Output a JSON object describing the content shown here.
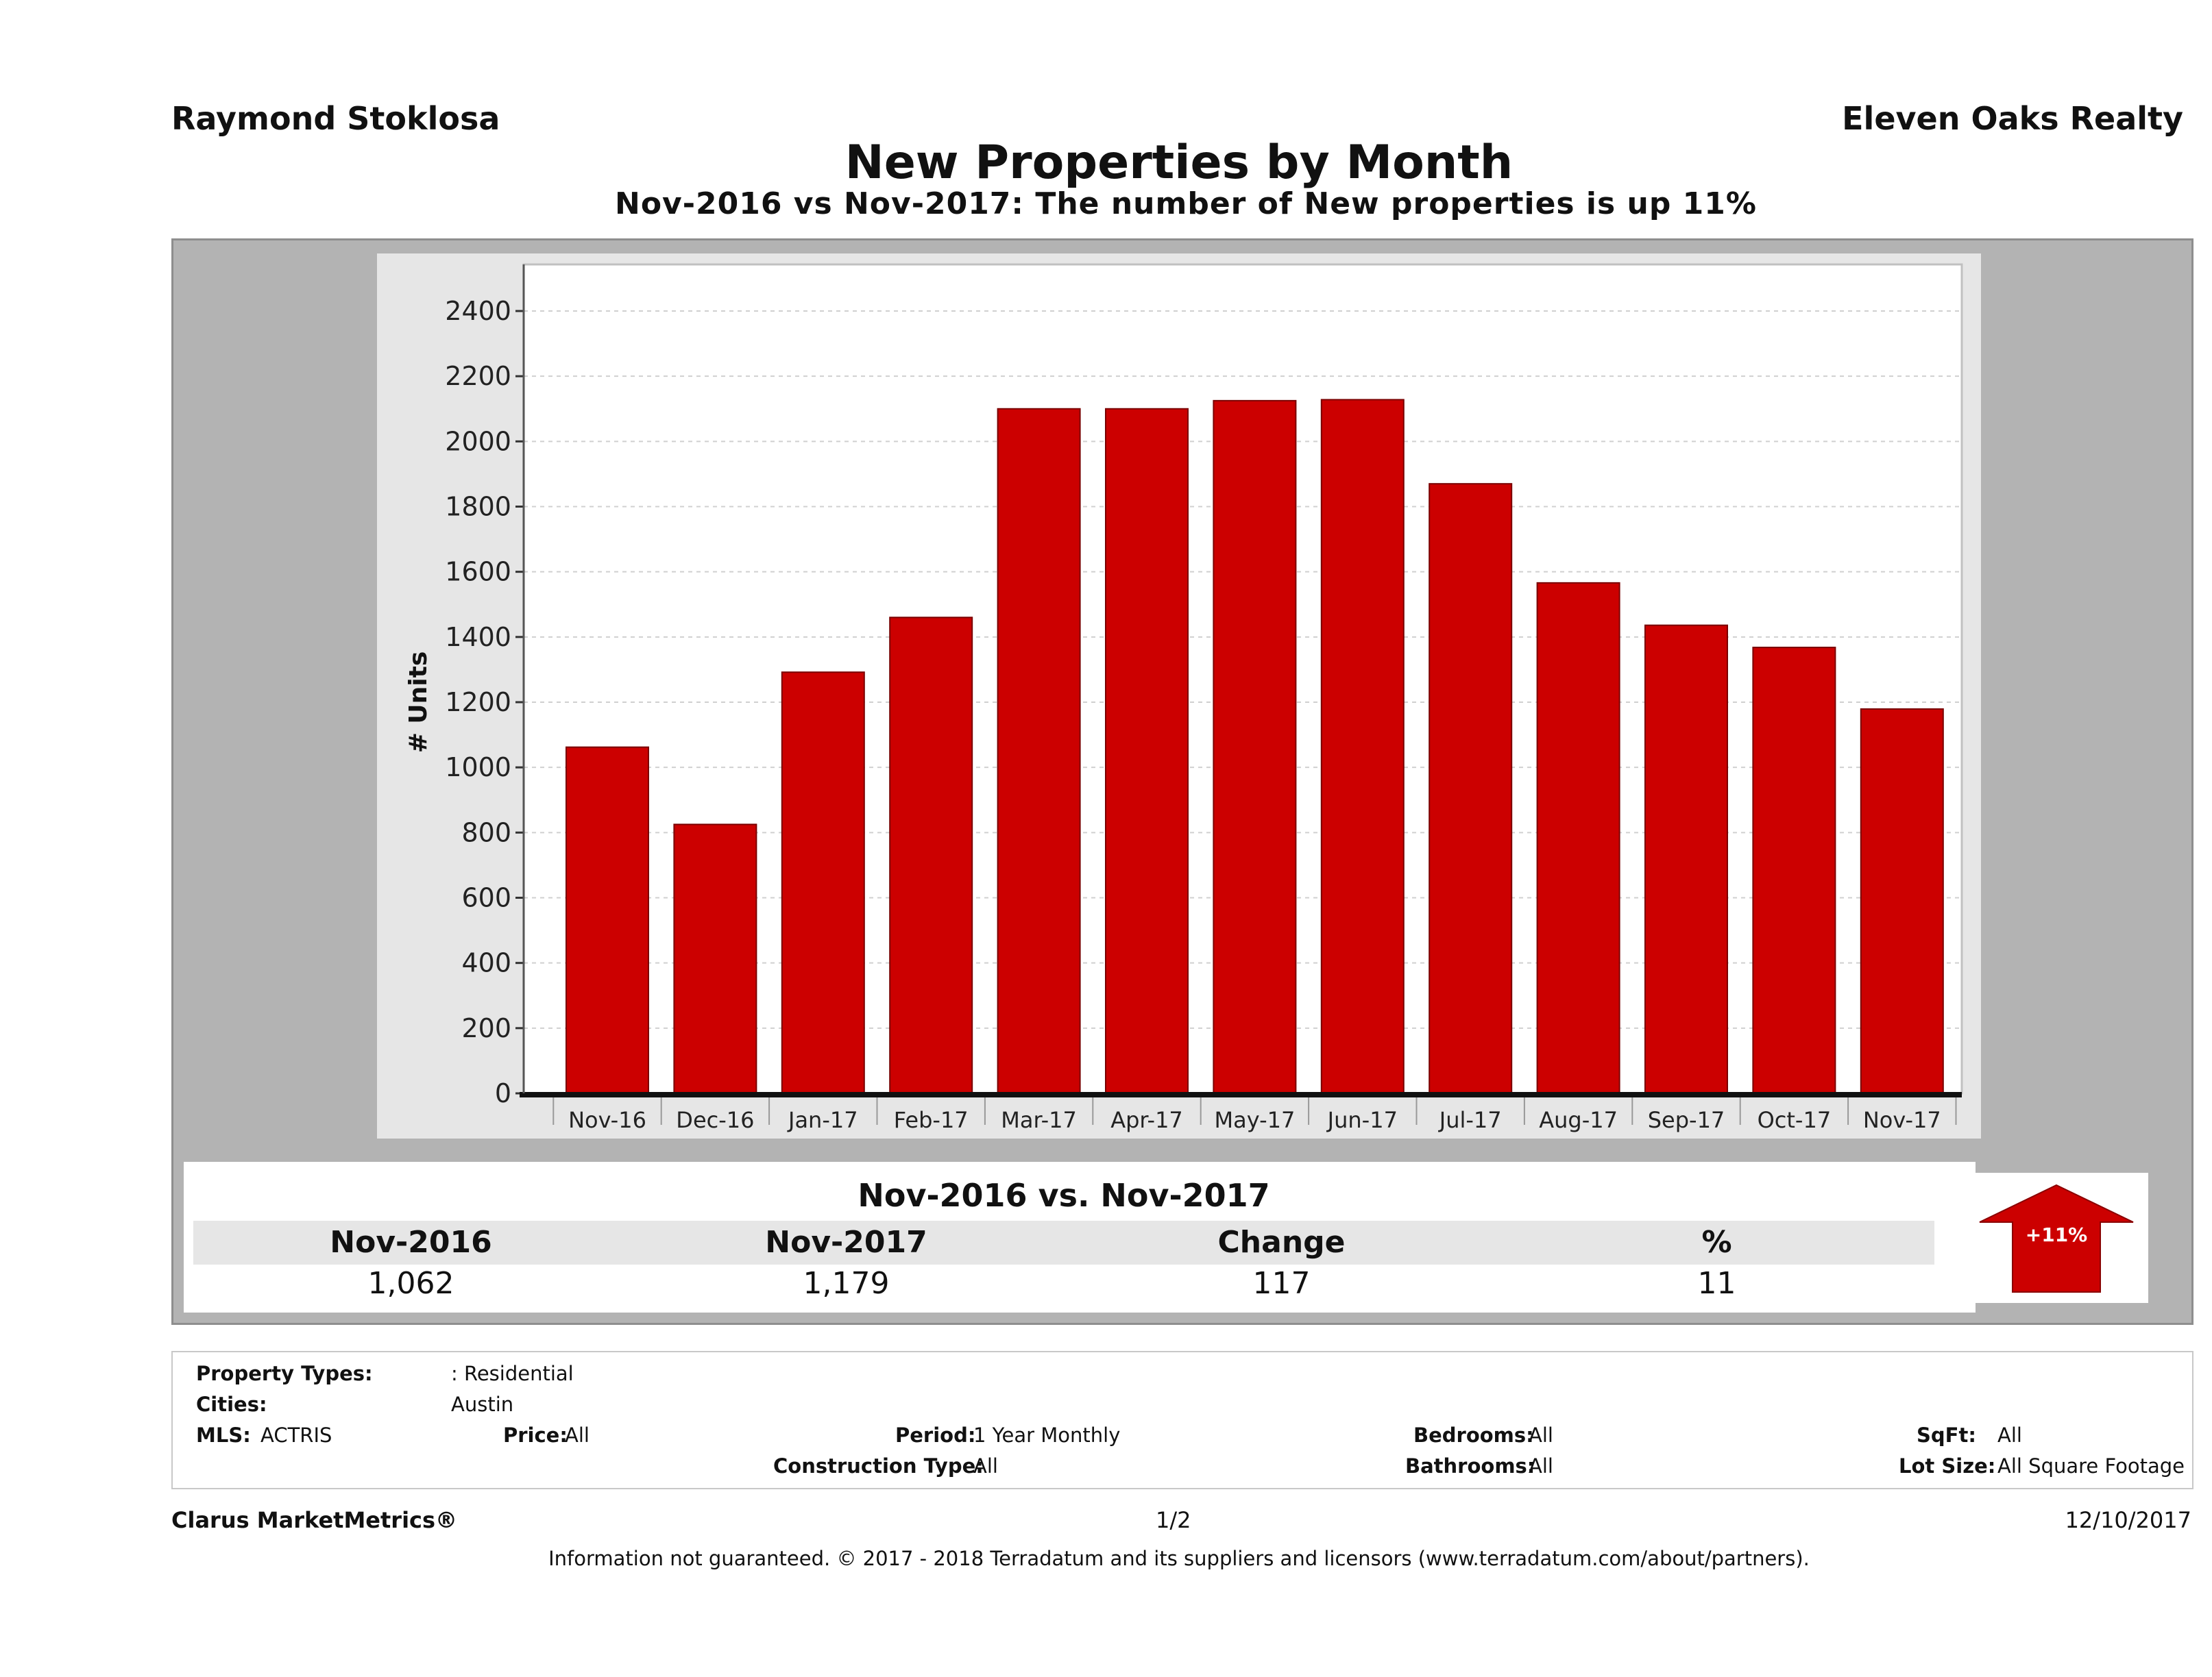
{
  "header": {
    "agent": "Raymond Stoklosa",
    "brokerage": "Eleven Oaks Realty",
    "title": "New Properties by Month",
    "subtitle": "Nov-2016 vs Nov-2017: The number of New  properties is up 11%"
  },
  "colors": {
    "bar": "#cc0000",
    "panel": "#b3b3b3",
    "plot_bg": "#ffffff",
    "chart_bg": "#e6e6e6",
    "arrow": "#cc0000"
  },
  "chart_data": {
    "type": "bar",
    "title": "",
    "xlabel": "",
    "ylabel": "# Units",
    "categories": [
      "Nov-16",
      "Dec-16",
      "Jan-17",
      "Feb-17",
      "Mar-17",
      "Apr-17",
      "May-17",
      "Jun-17",
      "Jul-17",
      "Aug-17",
      "Sep-17",
      "Oct-17",
      "Nov-17"
    ],
    "values": [
      1062,
      825,
      1292,
      1460,
      2100,
      2100,
      2125,
      2128,
      1870,
      1566,
      1436,
      1368,
      1179
    ],
    "ylim": [
      0,
      2400
    ],
    "yticks": [
      0,
      200,
      400,
      600,
      800,
      1000,
      1200,
      1400,
      1600,
      1800,
      2000,
      2200,
      2400
    ],
    "grid": true,
    "legend": "none"
  },
  "summary": {
    "title": "Nov-2016 vs. Nov-2017",
    "headers": [
      "Nov-2016",
      "Nov-2017",
      "Change",
      "%"
    ],
    "values": [
      "1,062",
      "1,179",
      "117",
      "11"
    ],
    "badge": "+11%",
    "badge_icon": "up-arrow-icon"
  },
  "criteria": {
    "property_types_label": "Property Types:",
    "property_types": ": Residential",
    "cities_label": "Cities:",
    "cities": "Austin",
    "mls_label": "MLS:",
    "mls": "ACTRIS",
    "price_label": "Price:",
    "price": "All",
    "period_label": "Period:",
    "period": "1 Year Monthly",
    "construction_label": "Construction Type:",
    "construction": "All",
    "bedrooms_label": "Bedrooms:",
    "bedrooms": "All",
    "bathrooms_label": "Bathrooms:",
    "bathrooms": "All",
    "sqft_label": "SqFt:",
    "sqft": "All",
    "lotsize_label": "Lot Size:",
    "lotsize": "All Square Footage"
  },
  "footer": {
    "brand": "Clarus MarketMetrics®",
    "page": "1/2",
    "date": "12/10/2017",
    "disclaimer": "Information not guaranteed. © 2017 - 2018 Terradatum and its suppliers and licensors (www.terradatum.com/about/partners)."
  }
}
